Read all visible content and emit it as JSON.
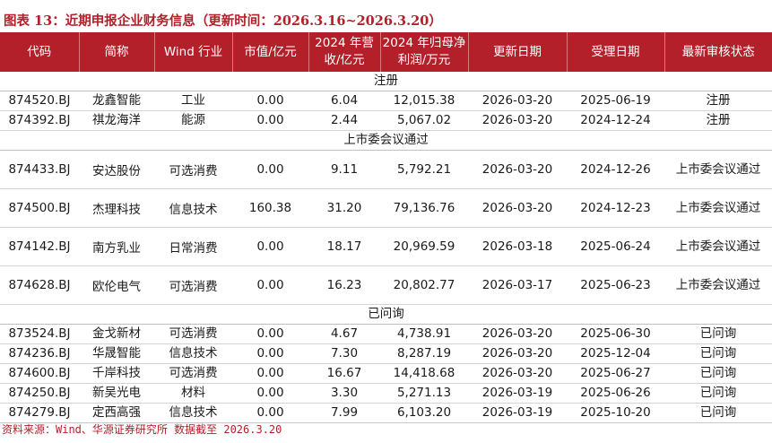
{
  "title": "图表 13：近期申报企业财务信息（更新时间：2026.3.16~2026.3.20）",
  "headers": [
    "代码",
    "简称",
    "Wind 行业",
    "市值/亿元",
    "2024 年营收/亿元",
    "2024 年归母净利润/万元",
    "更新日期",
    "受理日期",
    "最新审核状态"
  ],
  "sections": [
    {
      "name": "注册",
      "rows": [
        [
          "874520.BJ",
          "龙鑫智能",
          "工业",
          "0.00",
          "6.04",
          "12,015.38",
          "2026-03-20",
          "2025-06-19",
          "注册"
        ],
        [
          "874392.BJ",
          "祺龙海洋",
          "能源",
          "0.00",
          "2.44",
          "5,067.02",
          "2026-03-20",
          "2024-12-24",
          "注册"
        ]
      ]
    },
    {
      "name": "上市委会议通过",
      "rows": [
        [
          "874433.BJ",
          "安达股份",
          "可选消费",
          "0.00",
          "9.11",
          "5,792.21",
          "2026-03-20",
          "2024-12-26",
          "上市委会议通过"
        ],
        [
          "874500.BJ",
          "杰理科技",
          "信息技术",
          "160.38",
          "31.20",
          "79,136.76",
          "2026-03-20",
          "2024-12-23",
          "上市委会议通过"
        ],
        [
          "874142.BJ",
          "南方乳业",
          "日常消费",
          "0.00",
          "18.17",
          "20,969.59",
          "2026-03-18",
          "2025-06-24",
          "上市委会议通过"
        ],
        [
          "874628.BJ",
          "欧伦电气",
          "可选消费",
          "0.00",
          "16.23",
          "20,802.77",
          "2026-03-17",
          "2025-06-23",
          "上市委会议通过"
        ]
      ]
    },
    {
      "name": "已问询",
      "rows": [
        [
          "873524.BJ",
          "金戈新材",
          "可选消费",
          "0.00",
          "4.67",
          "4,738.91",
          "2026-03-20",
          "2025-06-30",
          "已问询"
        ],
        [
          "874236.BJ",
          "华晟智能",
          "信息技术",
          "0.00",
          "7.30",
          "8,287.19",
          "2026-03-20",
          "2025-12-04",
          "已问询"
        ],
        [
          "874600.BJ",
          "千岸科技",
          "可选消费",
          "0.00",
          "16.67",
          "14,418.68",
          "2026-03-20",
          "2025-06-27",
          "已问询"
        ],
        [
          "874250.BJ",
          "新吴光电",
          "材料",
          "0.00",
          "3.30",
          "5,271.13",
          "2026-03-19",
          "2025-06-26",
          "已问询"
        ],
        [
          "874279.BJ",
          "定西高强",
          "信息技术",
          "0.00",
          "7.99",
          "6,103.20",
          "2026-03-19",
          "2025-10-20",
          "已问询"
        ]
      ]
    }
  ],
  "source": "资料来源：Wind、华源证券研究所 数据截至 2026.3.20",
  "colors": {
    "accent": "#b4202a",
    "header_text": "#ffffff"
  }
}
